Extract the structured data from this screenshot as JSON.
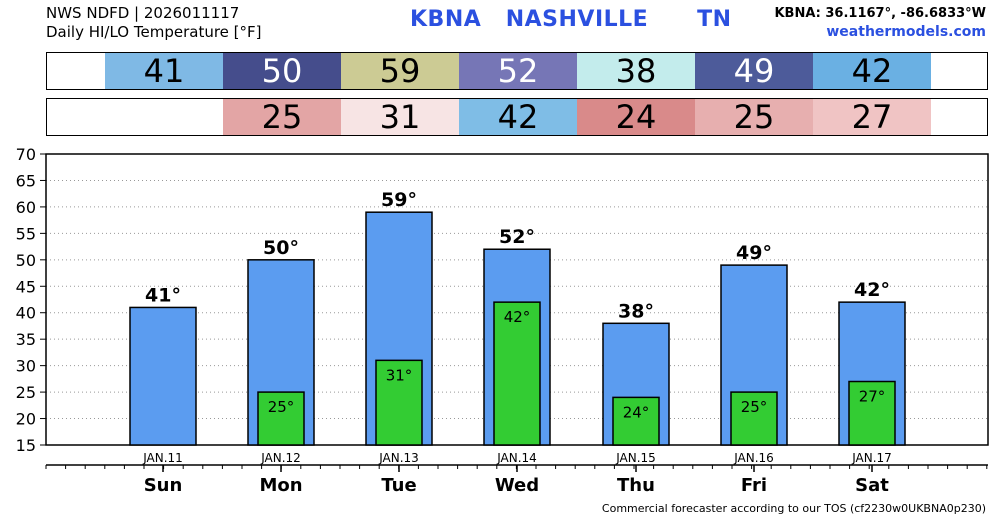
{
  "header": {
    "line1": "NWS NDFD | 2026011117",
    "line2": "Daily HI/LO Temperature [°F]",
    "title": "KBNA   NASHVILLE      TN",
    "coords": "KBNA: 36.1167°, -86.6833°W",
    "site": "weathermodels.com"
  },
  "footer": "Commercial forecaster according to our TOS (cf2230w0UKBNA0p230)",
  "colors": {
    "bar_high": "#5b9cf0",
    "bar_low": "#33cc33",
    "hi_cells": [
      "#7fb9e5",
      "#454d8c",
      "#cccb94",
      "#7676b6",
      "#c3ecec",
      "#4d5b9a",
      "#6ab0e3"
    ],
    "lo_cells": [
      "#e3a5a5",
      "#f7e4e4",
      "#7fbde6",
      "#d98a8a",
      "#e7afaf",
      "#f0c4c4"
    ],
    "hi_text": [
      "#000000",
      "#ffffff",
      "#000000",
      "#ffffff",
      "#000000",
      "#ffffff",
      "#000000"
    ],
    "lo_text": [
      "#000000",
      "#000000",
      "#000000",
      "#000000",
      "#000000",
      "#000000"
    ]
  },
  "hi_row": [
    "41",
    "50",
    "59",
    "52",
    "38",
    "49",
    "42"
  ],
  "lo_row": [
    "25",
    "31",
    "42",
    "24",
    "25",
    "27"
  ],
  "chart_data": {
    "type": "bar",
    "categories": [
      "JAN.11",
      "JAN.12",
      "JAN.13",
      "JAN.14",
      "JAN.15",
      "JAN.16",
      "JAN.17"
    ],
    "days": [
      "Sun",
      "Mon",
      "Tue",
      "Wed",
      "Thu",
      "Fri",
      "Sat"
    ],
    "series": [
      {
        "values": [
          41,
          50,
          59,
          52,
          38,
          49,
          42
        ],
        "labels": [
          "41°",
          "50°",
          "59°",
          "52°",
          "38°",
          "49°",
          "42°"
        ]
      },
      {
        "values": [
          null,
          25,
          31,
          42,
          24,
          25,
          27
        ],
        "labels": [
          "",
          "25°",
          "31°",
          "42°",
          "24°",
          "25°",
          "27°"
        ]
      }
    ],
    "ylim": [
      15,
      70
    ],
    "yticks": [
      15,
      20,
      25,
      30,
      35,
      40,
      45,
      50,
      55,
      60,
      65,
      70
    ],
    "grid": true
  }
}
